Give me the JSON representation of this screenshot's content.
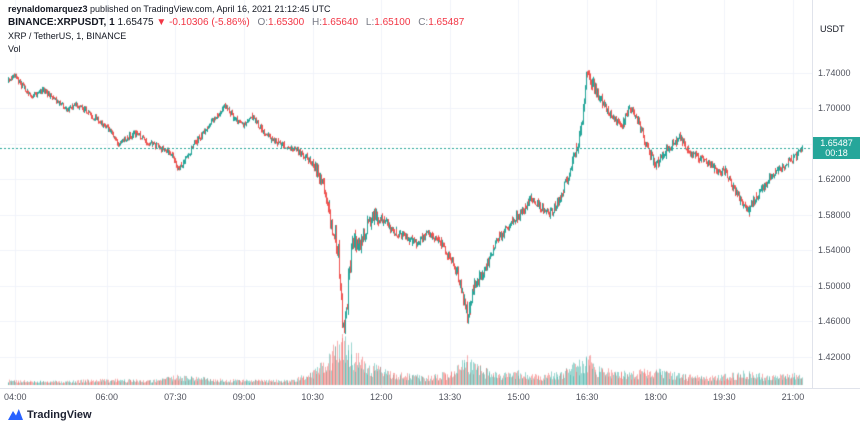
{
  "header": {
    "author": "reynaldomarquez3",
    "published": "published on TradingView.com, April 16, 2021 21:12:45 UTC",
    "symbol_line": {
      "symbol": "BINANCE:XRPUSDT, 1",
      "last": "1.65475",
      "change": "▼ -0.10306 (-5.86%)",
      "o_label": "O:",
      "o": "1.65300",
      "h_label": "H:",
      "h": "1.65640",
      "l_label": "L:",
      "l": "1.65100",
      "c_label": "C:",
      "c": "1.65487"
    },
    "description": "XRP / TetherUS, 1, BINANCE",
    "vol_label": "Vol"
  },
  "axes": {
    "currency_label": "USDT",
    "price_ticks": [
      "1.74000",
      "1.70000",
      "1.66000",
      "1.62000",
      "1.58000",
      "1.54000",
      "1.50000",
      "1.46000",
      "1.42000"
    ],
    "time_ticks": [
      "04:00",
      "06:00",
      "07:30",
      "09:00",
      "10:30",
      "12:00",
      "13:30",
      "15:00",
      "16:30",
      "18:00",
      "19:30",
      "21:00"
    ]
  },
  "price_label": {
    "value": "1.65487",
    "countdown": "00:18"
  },
  "footer": {
    "brand": "TradingView"
  },
  "colors": {
    "up": "#26a69a",
    "down": "#ef5350",
    "up_volume": "rgba(38,166,154,0.45)",
    "down_volume": "rgba(239,83,80,0.45)",
    "red_text": "#f23645",
    "grid": "#f0f3fa",
    "axis_text": "#50535e",
    "label_bg": "#26a69a",
    "brand_blue": "#2962ff"
  },
  "chart_data": {
    "type": "candlestick",
    "symbol": "BINANCE:XRPUSDT",
    "interval": "1",
    "title": "XRP / TetherUS, 1, BINANCE",
    "last_price": 1.65487,
    "time_range_min": [
      220,
      1285
    ],
    "start_min": 230,
    "end_min": 1272,
    "price_range": [
      1.385,
      1.822
    ],
    "grid_prices": [
      1.74,
      1.7,
      1.66,
      1.62,
      1.58,
      1.54,
      1.5,
      1.46,
      1.42
    ],
    "grid_times": [
      240,
      360,
      450,
      540,
      630,
      720,
      810,
      900,
      990,
      1080,
      1170,
      1260
    ],
    "volume_pane_height": 56,
    "anchors": [
      [
        230,
        1.73
      ],
      [
        238,
        1.738
      ],
      [
        248,
        1.726
      ],
      [
        262,
        1.714
      ],
      [
        276,
        1.72
      ],
      [
        292,
        1.71
      ],
      [
        308,
        1.699
      ],
      [
        322,
        1.704
      ],
      [
        338,
        1.693
      ],
      [
        352,
        1.684
      ],
      [
        362,
        1.676
      ],
      [
        374,
        1.659
      ],
      [
        386,
        1.668
      ],
      [
        400,
        1.672
      ],
      [
        414,
        1.661
      ],
      [
        430,
        1.656
      ],
      [
        444,
        1.648
      ],
      [
        455,
        1.631
      ],
      [
        466,
        1.648
      ],
      [
        478,
        1.664
      ],
      [
        492,
        1.678
      ],
      [
        506,
        1.694
      ],
      [
        516,
        1.703
      ],
      [
        526,
        1.689
      ],
      [
        540,
        1.681
      ],
      [
        550,
        1.691
      ],
      [
        562,
        1.677
      ],
      [
        576,
        1.665
      ],
      [
        590,
        1.659
      ],
      [
        605,
        1.654
      ],
      [
        620,
        1.647
      ],
      [
        632,
        1.636
      ],
      [
        642,
        1.618
      ],
      [
        650,
        1.588
      ],
      [
        658,
        1.56
      ],
      [
        664,
        1.535
      ],
      [
        668,
        1.478
      ],
      [
        671,
        1.438
      ],
      [
        674,
        1.472
      ],
      [
        678,
        1.52
      ],
      [
        683,
        1.552
      ],
      [
        692,
        1.543
      ],
      [
        701,
        1.568
      ],
      [
        711,
        1.579
      ],
      [
        722,
        1.574
      ],
      [
        736,
        1.561
      ],
      [
        751,
        1.555
      ],
      [
        766,
        1.548
      ],
      [
        781,
        1.559
      ],
      [
        796,
        1.551
      ],
      [
        810,
        1.531
      ],
      [
        818,
        1.519
      ],
      [
        826,
        1.492
      ],
      [
        833,
        1.463
      ],
      [
        841,
        1.499
      ],
      [
        856,
        1.519
      ],
      [
        871,
        1.551
      ],
      [
        886,
        1.567
      ],
      [
        901,
        1.581
      ],
      [
        916,
        1.599
      ],
      [
        926,
        1.591
      ],
      [
        941,
        1.58
      ],
      [
        956,
        1.601
      ],
      [
        970,
        1.639
      ],
      [
        981,
        1.671
      ],
      [
        989,
        1.74
      ],
      [
        996,
        1.729
      ],
      [
        1006,
        1.711
      ],
      [
        1016,
        1.697
      ],
      [
        1026,
        1.689
      ],
      [
        1036,
        1.681
      ],
      [
        1046,
        1.701
      ],
      [
        1056,
        1.687
      ],
      [
        1066,
        1.661
      ],
      [
        1080,
        1.637
      ],
      [
        1091,
        1.649
      ],
      [
        1101,
        1.659
      ],
      [
        1111,
        1.667
      ],
      [
        1121,
        1.654
      ],
      [
        1136,
        1.644
      ],
      [
        1151,
        1.637
      ],
      [
        1161,
        1.627
      ],
      [
        1171,
        1.631
      ],
      [
        1181,
        1.611
      ],
      [
        1191,
        1.597
      ],
      [
        1201,
        1.584
      ],
      [
        1211,
        1.599
      ],
      [
        1221,
        1.611
      ],
      [
        1231,
        1.624
      ],
      [
        1241,
        1.63
      ],
      [
        1251,
        1.637
      ],
      [
        1261,
        1.645
      ],
      [
        1268,
        1.651
      ],
      [
        1272,
        1.655
      ]
    ],
    "volume_anchors": [
      [
        230,
        0.1
      ],
      [
        300,
        0.08
      ],
      [
        360,
        0.12
      ],
      [
        420,
        0.1
      ],
      [
        455,
        0.2
      ],
      [
        500,
        0.12
      ],
      [
        540,
        0.1
      ],
      [
        600,
        0.1
      ],
      [
        632,
        0.28
      ],
      [
        650,
        0.55
      ],
      [
        662,
        0.85
      ],
      [
        671,
        1.0
      ],
      [
        685,
        0.68
      ],
      [
        700,
        0.45
      ],
      [
        722,
        0.33
      ],
      [
        750,
        0.22
      ],
      [
        780,
        0.17
      ],
      [
        815,
        0.28
      ],
      [
        833,
        0.55
      ],
      [
        845,
        0.38
      ],
      [
        870,
        0.24
      ],
      [
        900,
        0.28
      ],
      [
        930,
        0.2
      ],
      [
        960,
        0.3
      ],
      [
        981,
        0.5
      ],
      [
        990,
        0.62
      ],
      [
        1000,
        0.42
      ],
      [
        1020,
        0.28
      ],
      [
        1046,
        0.26
      ],
      [
        1080,
        0.32
      ],
      [
        1110,
        0.22
      ],
      [
        1140,
        0.17
      ],
      [
        1170,
        0.2
      ],
      [
        1201,
        0.28
      ],
      [
        1230,
        0.17
      ],
      [
        1260,
        0.22
      ],
      [
        1272,
        0.25
      ]
    ]
  }
}
